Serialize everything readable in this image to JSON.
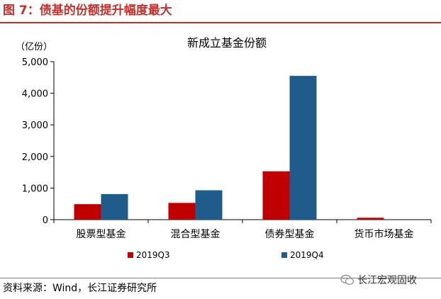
{
  "figure": {
    "title": "图 7：债基的份额提升幅度最大",
    "source": "资料来源：Wind，长江证券研究所",
    "watermark": "长江宏观固收",
    "accent_color": "#c4302b"
  },
  "chart_data": {
    "type": "bar",
    "title": "新成立基金份额",
    "unit_label": "（亿份）",
    "categories": [
      "股票型基金",
      "混合型基金",
      "债券型基金",
      "货币市场基金"
    ],
    "series": [
      {
        "name": "2019Q3",
        "color": "#c00000",
        "values": [
          490,
          530,
          1530,
          60
        ]
      },
      {
        "name": "2019Q4",
        "color": "#1f5c8b",
        "values": [
          810,
          930,
          4550,
          0
        ]
      }
    ],
    "ylim": [
      0,
      5000
    ],
    "yticks": [
      0,
      1000,
      2000,
      3000,
      4000,
      5000
    ],
    "ytick_labels": [
      "0",
      "1,000",
      "2,000",
      "3,000",
      "4,000",
      "5,000"
    ],
    "legend_position": "bottom",
    "grid": false
  }
}
